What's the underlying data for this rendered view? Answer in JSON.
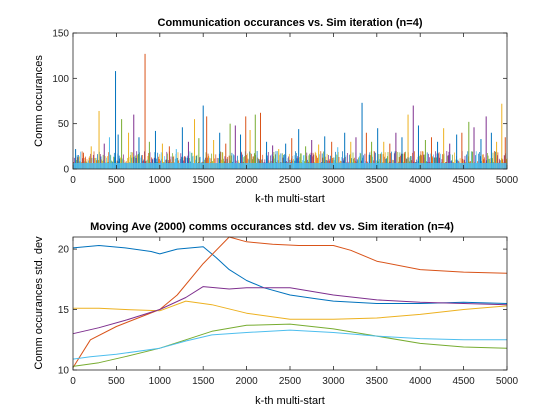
{
  "figure": {
    "background": "#ffffff"
  },
  "chart_data": [
    {
      "type": "bar",
      "title": "Communication occurances vs. Sim iteration (n=4)",
      "xlabel": "k-th multi-start",
      "ylabel": "Comm occurances",
      "xlim": [
        0,
        5000
      ],
      "ylim": [
        0,
        150
      ],
      "xticks": [
        0,
        500,
        1000,
        1500,
        2000,
        2500,
        3000,
        3500,
        4000,
        4500,
        5000
      ],
      "yticks": [
        0,
        50,
        100,
        150
      ],
      "grid": false,
      "baseline_band": {
        "description_level": [
          0,
          12
        ],
        "color": "#4DBEEE"
      },
      "series_colors": [
        "#0072BD",
        "#D95319",
        "#EDB120",
        "#7E2F8E",
        "#77AC30",
        "#4DBEEE"
      ],
      "spikes": [
        {
          "x": 30,
          "y": 22,
          "color": "#0072BD"
        },
        {
          "x": 120,
          "y": 18,
          "color": "#D95319"
        },
        {
          "x": 210,
          "y": 25,
          "color": "#EDB120"
        },
        {
          "x": 300,
          "y": 64,
          "color": "#EDB120"
        },
        {
          "x": 360,
          "y": 28,
          "color": "#7E2F8E"
        },
        {
          "x": 420,
          "y": 35,
          "color": "#4DBEEE"
        },
        {
          "x": 490,
          "y": 108,
          "color": "#0072BD"
        },
        {
          "x": 520,
          "y": 38,
          "color": "#0072BD"
        },
        {
          "x": 560,
          "y": 55,
          "color": "#77AC30"
        },
        {
          "x": 640,
          "y": 40,
          "color": "#EDB120"
        },
        {
          "x": 700,
          "y": 60,
          "color": "#7E2F8E"
        },
        {
          "x": 760,
          "y": 35,
          "color": "#0072BD"
        },
        {
          "x": 830,
          "y": 127,
          "color": "#D95319"
        },
        {
          "x": 880,
          "y": 30,
          "color": "#77AC30"
        },
        {
          "x": 950,
          "y": 42,
          "color": "#0072BD"
        },
        {
          "x": 1030,
          "y": 28,
          "color": "#EDB120"
        },
        {
          "x": 1110,
          "y": 25,
          "color": "#D95319"
        },
        {
          "x": 1190,
          "y": 22,
          "color": "#4DBEEE"
        },
        {
          "x": 1260,
          "y": 46,
          "color": "#0072BD"
        },
        {
          "x": 1330,
          "y": 30,
          "color": "#7E2F8E"
        },
        {
          "x": 1400,
          "y": 55,
          "color": "#EDB120"
        },
        {
          "x": 1450,
          "y": 34,
          "color": "#77AC30"
        },
        {
          "x": 1500,
          "y": 70,
          "color": "#0072BD"
        },
        {
          "x": 1540,
          "y": 58,
          "color": "#D95319"
        },
        {
          "x": 1620,
          "y": 32,
          "color": "#EDB120"
        },
        {
          "x": 1690,
          "y": 40,
          "color": "#0072BD"
        },
        {
          "x": 1760,
          "y": 28,
          "color": "#D95319"
        },
        {
          "x": 1810,
          "y": 50,
          "color": "#77AC30"
        },
        {
          "x": 1870,
          "y": 48,
          "color": "#7E2F8E"
        },
        {
          "x": 1930,
          "y": 38,
          "color": "#0072BD"
        },
        {
          "x": 1990,
          "y": 58,
          "color": "#D95319"
        },
        {
          "x": 2040,
          "y": 43,
          "color": "#EDB120"
        },
        {
          "x": 2100,
          "y": 60,
          "color": "#77AC30"
        },
        {
          "x": 2160,
          "y": 62,
          "color": "#D95319"
        },
        {
          "x": 2230,
          "y": 30,
          "color": "#0072BD"
        },
        {
          "x": 2300,
          "y": 26,
          "color": "#7E2F8E"
        },
        {
          "x": 2370,
          "y": 22,
          "color": "#EDB120"
        },
        {
          "x": 2450,
          "y": 28,
          "color": "#0072BD"
        },
        {
          "x": 2520,
          "y": 34,
          "color": "#D95319"
        },
        {
          "x": 2600,
          "y": 44,
          "color": "#0072BD"
        },
        {
          "x": 2680,
          "y": 25,
          "color": "#77AC30"
        },
        {
          "x": 2750,
          "y": 32,
          "color": "#7E2F8E"
        },
        {
          "x": 2830,
          "y": 27,
          "color": "#EDB120"
        },
        {
          "x": 2900,
          "y": 36,
          "color": "#0072BD"
        },
        {
          "x": 2980,
          "y": 30,
          "color": "#D95319"
        },
        {
          "x": 3050,
          "y": 24,
          "color": "#4DBEEE"
        },
        {
          "x": 3130,
          "y": 40,
          "color": "#0072BD"
        },
        {
          "x": 3200,
          "y": 30,
          "color": "#EDB120"
        },
        {
          "x": 3260,
          "y": 35,
          "color": "#7E2F8E"
        },
        {
          "x": 3330,
          "y": 73,
          "color": "#0072BD"
        },
        {
          "x": 3380,
          "y": 40,
          "color": "#D95319"
        },
        {
          "x": 3440,
          "y": 30,
          "color": "#77AC30"
        },
        {
          "x": 3510,
          "y": 45,
          "color": "#0072BD"
        },
        {
          "x": 3580,
          "y": 30,
          "color": "#EDB120"
        },
        {
          "x": 3650,
          "y": 28,
          "color": "#D95319"
        },
        {
          "x": 3720,
          "y": 40,
          "color": "#7E2F8E"
        },
        {
          "x": 3790,
          "y": 35,
          "color": "#0072BD"
        },
        {
          "x": 3860,
          "y": 60,
          "color": "#EDB120"
        },
        {
          "x": 3920,
          "y": 70,
          "color": "#7E2F8E"
        },
        {
          "x": 3980,
          "y": 48,
          "color": "#0072BD"
        },
        {
          "x": 4060,
          "y": 32,
          "color": "#77AC30"
        },
        {
          "x": 4130,
          "y": 35,
          "color": "#D95319"
        },
        {
          "x": 4200,
          "y": 30,
          "color": "#0072BD"
        },
        {
          "x": 4270,
          "y": 45,
          "color": "#EDB120"
        },
        {
          "x": 4340,
          "y": 28,
          "color": "#7E2F8E"
        },
        {
          "x": 4420,
          "y": 38,
          "color": "#0072BD"
        },
        {
          "x": 4480,
          "y": 40,
          "color": "#D95319"
        },
        {
          "x": 4560,
          "y": 52,
          "color": "#77AC30"
        },
        {
          "x": 4620,
          "y": 46,
          "color": "#7E2F8E"
        },
        {
          "x": 4700,
          "y": 33,
          "color": "#0072BD"
        },
        {
          "x": 4760,
          "y": 58,
          "color": "#7E2F8E"
        },
        {
          "x": 4820,
          "y": 40,
          "color": "#0072BD"
        },
        {
          "x": 4880,
          "y": 30,
          "color": "#EDB120"
        },
        {
          "x": 4940,
          "y": 72,
          "color": "#EDB120"
        },
        {
          "x": 4980,
          "y": 35,
          "color": "#D95319"
        }
      ]
    },
    {
      "type": "line",
      "title": "Moving Ave (2000) comms occurances std. dev vs. Sim iteration (n=4)",
      "xlabel": "k-th multi-start",
      "ylabel": "Comm occurances std. dev",
      "xlim": [
        0,
        5000
      ],
      "ylim": [
        10,
        21
      ],
      "xticks": [
        0,
        500,
        1000,
        1500,
        2000,
        2500,
        3000,
        3500,
        4000,
        4500,
        5000
      ],
      "yticks": [
        10,
        15,
        20
      ],
      "grid": false,
      "series": [
        {
          "color": "#0072BD",
          "x": [
            0,
            300,
            600,
            900,
            1000,
            1200,
            1500,
            1650,
            1800,
            2000,
            2200,
            2500,
            2800,
            3000,
            3500,
            4000,
            4500,
            5000
          ],
          "y": [
            20.1,
            20.3,
            20.1,
            19.8,
            19.6,
            20.0,
            20.2,
            19.3,
            18.3,
            17.4,
            16.8,
            16.2,
            15.9,
            15.7,
            15.5,
            15.5,
            15.6,
            15.5
          ]
        },
        {
          "color": "#D95319",
          "x": [
            0,
            200,
            500,
            1000,
            1200,
            1500,
            1800,
            2000,
            2300,
            2600,
            3000,
            3200,
            3500,
            4000,
            4500,
            5000
          ],
          "y": [
            10.2,
            12.5,
            13.6,
            15.0,
            16.2,
            18.8,
            21.0,
            20.6,
            20.4,
            20.3,
            20.3,
            19.9,
            19.0,
            18.3,
            18.1,
            18.0
          ]
        },
        {
          "color": "#EDB120",
          "x": [
            0,
            300,
            600,
            1000,
            1300,
            1600,
            2000,
            2500,
            3000,
            3500,
            4000,
            4500,
            5000
          ],
          "y": [
            15.1,
            15.1,
            15.0,
            14.9,
            15.7,
            15.4,
            14.7,
            14.2,
            14.2,
            14.3,
            14.6,
            15.0,
            15.3
          ]
        },
        {
          "color": "#7E2F8E",
          "x": [
            0,
            300,
            600,
            1000,
            1300,
            1500,
            1800,
            2000,
            2500,
            3000,
            3500,
            4000,
            4500,
            5000
          ],
          "y": [
            13.0,
            13.5,
            14.1,
            15.0,
            16.0,
            16.9,
            16.7,
            16.8,
            16.8,
            16.2,
            15.8,
            15.6,
            15.5,
            15.4
          ]
        },
        {
          "color": "#77AC30",
          "x": [
            0,
            300,
            600,
            1000,
            1300,
            1600,
            2000,
            2500,
            3000,
            3500,
            4000,
            4500,
            5000
          ],
          "y": [
            10.3,
            10.6,
            11.1,
            11.8,
            12.5,
            13.2,
            13.7,
            13.8,
            13.4,
            12.8,
            12.2,
            11.9,
            11.8
          ]
        },
        {
          "color": "#4DBEEE",
          "x": [
            0,
            200,
            500,
            1000,
            1300,
            1600,
            2000,
            2500,
            3000,
            3500,
            4000,
            4500,
            5000
          ],
          "y": [
            10.9,
            11.1,
            11.3,
            11.8,
            12.4,
            12.9,
            13.1,
            13.3,
            13.1,
            12.8,
            12.6,
            12.5,
            12.5
          ]
        }
      ]
    }
  ]
}
